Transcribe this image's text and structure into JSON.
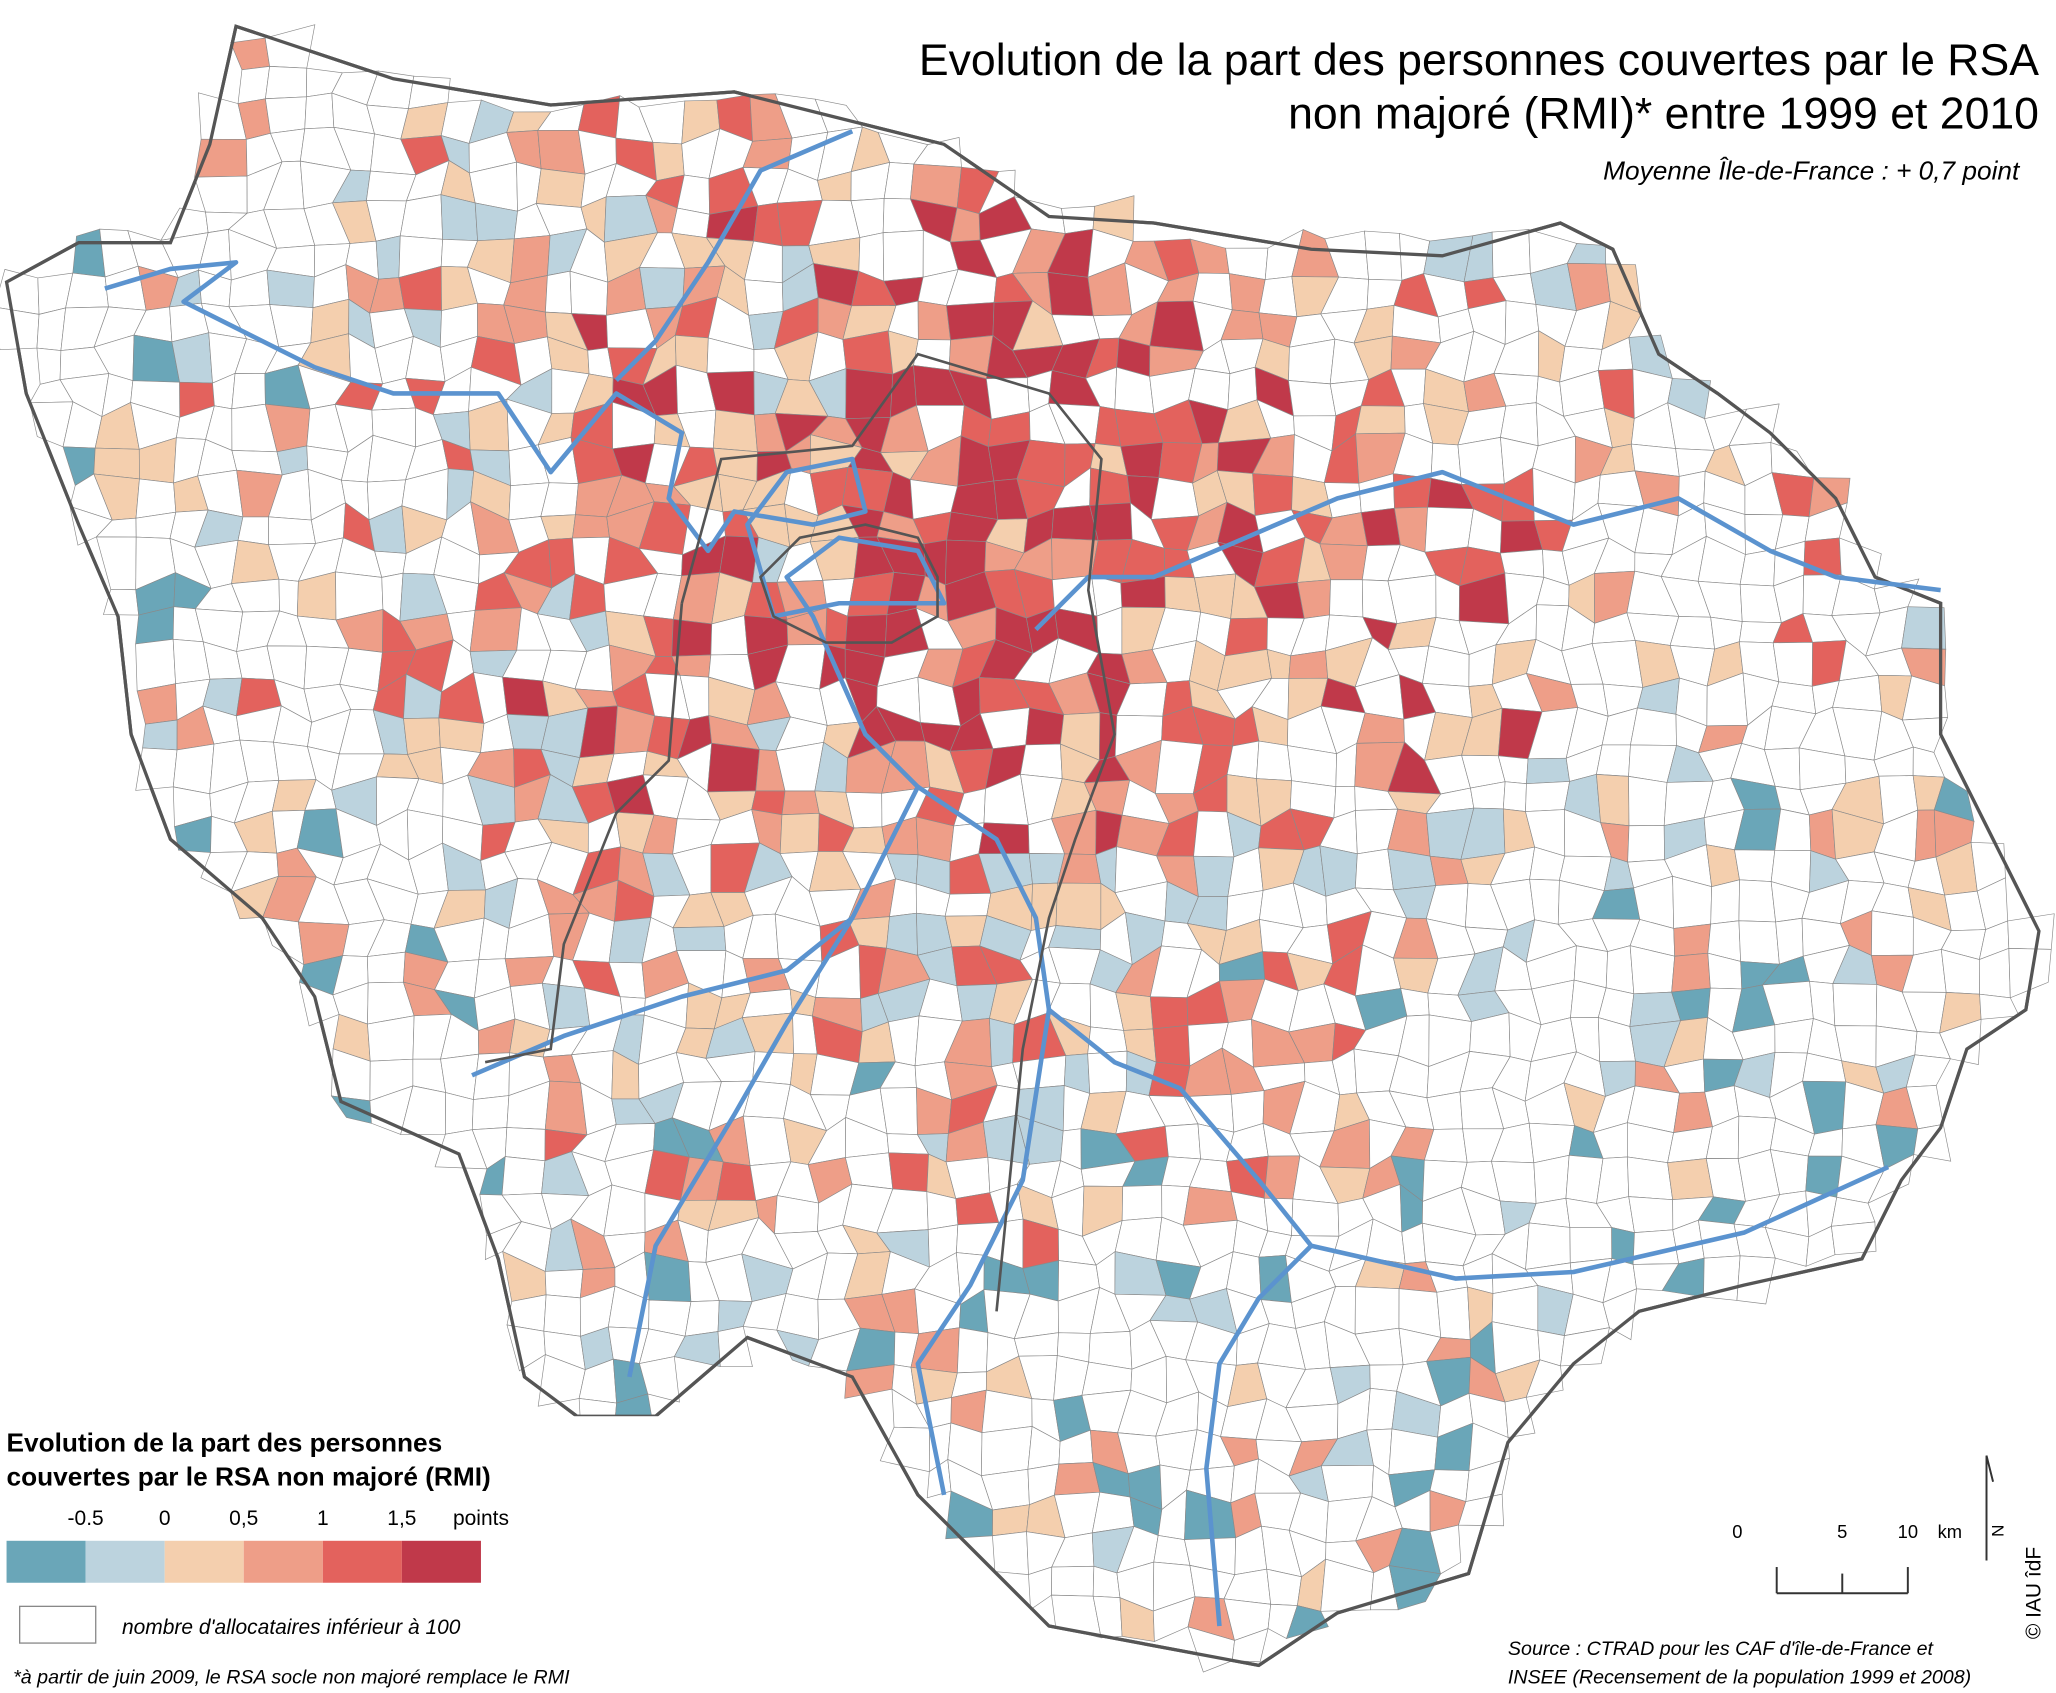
{
  "header": {
    "title_lines": [
      "Evolution de la part des personnes couvertes par le RSA",
      "non majoré (RMI)* entre 1999 et 2010"
    ],
    "subtitle": "Moyenne Île-de-France : + 0,7 point"
  },
  "legend": {
    "title_lines": [
      "Evolution de la part des personnes",
      "couvertes par le RSA non majoré (RMI)"
    ],
    "ticks": [
      "-0.5",
      "0",
      "0,5",
      "1",
      "1,5"
    ],
    "unit": "points",
    "colors": [
      "#6aa6b8",
      "#bcd3de",
      "#f4cfae",
      "#ee9e88",
      "#e3625d",
      "#c0394a"
    ],
    "no_data_label": "nombre d'allocataires inférieur à 100"
  },
  "footnote": "*à partir de juin 2009, le RSA socle non majoré remplace le RMI",
  "source_lines": [
    "Source : CTRAD pour les CAF d'île-de-France et",
    "INSEE (Recensement de la population 1999 et 2008)"
  ],
  "scale": {
    "labels": [
      "0",
      "5",
      "10"
    ],
    "unit": "km"
  },
  "north": "N",
  "copyright": "© IAU îdF"
}
